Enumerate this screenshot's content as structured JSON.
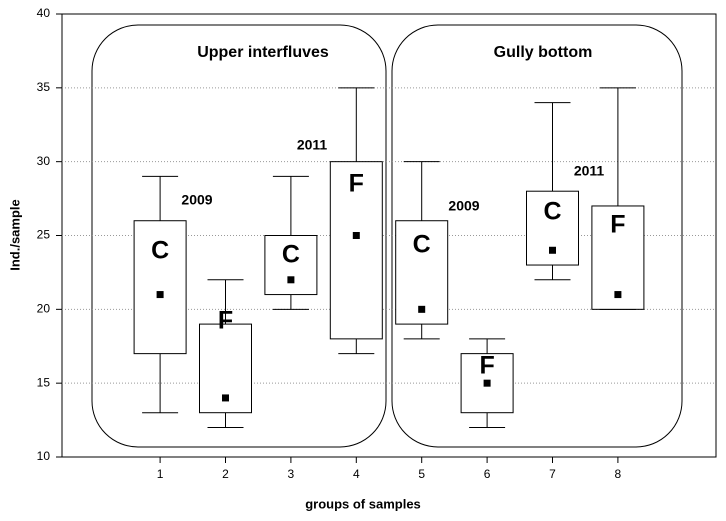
{
  "chart_data": {
    "type": "box",
    "xlabel": "groups of samples",
    "ylabel": "Ind./sample",
    "xlim": [
      -0.5,
      9.5
    ],
    "xticks": [
      1,
      2,
      3,
      4,
      5,
      6,
      7,
      8
    ],
    "ylim": [
      10,
      40
    ],
    "yticks": [
      10,
      15,
      20,
      25,
      30,
      35,
      40
    ],
    "grid": true,
    "x": [
      1,
      2,
      3,
      4,
      5,
      6,
      7,
      8
    ],
    "min": [
      13,
      12,
      20,
      17,
      18,
      12,
      22,
      20
    ],
    "q1": [
      17,
      13,
      21,
      18,
      19,
      13,
      23,
      20
    ],
    "mean": [
      21,
      14,
      22,
      25,
      20,
      15,
      24,
      21
    ],
    "q3": [
      26,
      19,
      25,
      30,
      26,
      17,
      28,
      27
    ],
    "max": [
      29,
      22,
      29,
      35,
      30,
      18,
      34,
      35
    ],
    "box_labels": [
      "C",
      "F",
      "C",
      "F",
      "C",
      "F",
      "C",
      "F"
    ],
    "groups": [
      "Upper interfluves",
      "Gully bottom"
    ],
    "annotations": [
      "2009",
      "2011",
      "2009",
      "2011"
    ]
  }
}
